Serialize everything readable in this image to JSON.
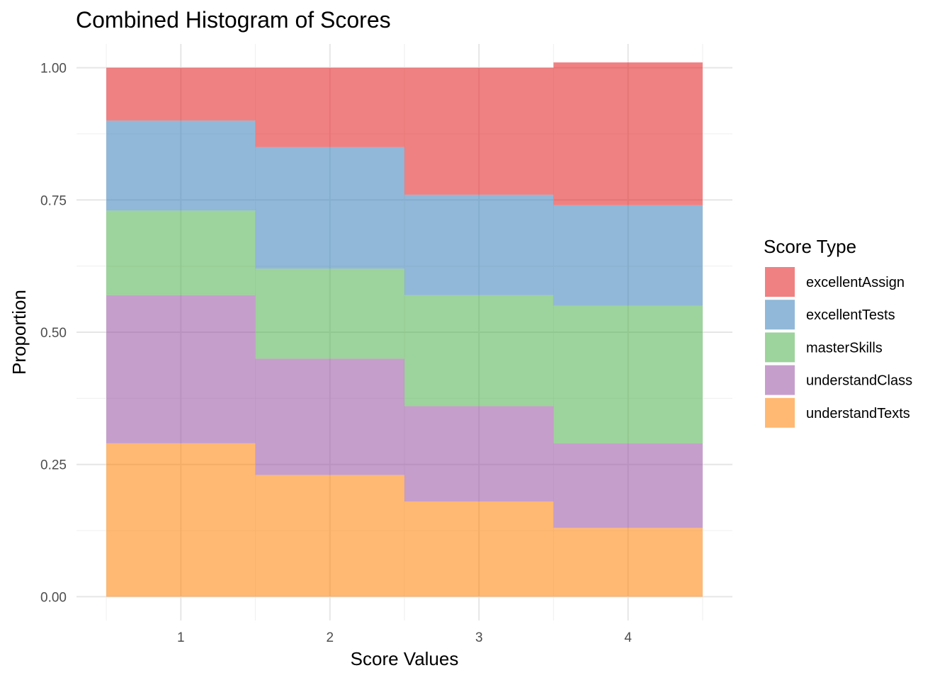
{
  "chart_data": {
    "type": "area",
    "subtype": "stacked step histogram (proportion)",
    "title": "Combined Histogram of Scores",
    "xlabel": "Score Values",
    "ylabel": "Proportion",
    "x": [
      1,
      2,
      3,
      4
    ],
    "x_tick_labels": [
      "1",
      "2",
      "3",
      "4"
    ],
    "y_ticks": [
      0.0,
      0.25,
      0.5,
      0.75,
      1.0
    ],
    "y_tick_labels": [
      "0.00",
      "0.25",
      "0.50",
      "0.75",
      "1.00"
    ],
    "xlim": [
      0.3,
      4.7
    ],
    "ylim": [
      -0.045,
      1.045
    ],
    "grid": true,
    "legend": {
      "title": "Score Type",
      "position": "right"
    },
    "stack_order_bottom_to_top": [
      "understandTexts",
      "understandClass",
      "masterSkills",
      "excellentTests",
      "excellentAssign"
    ],
    "series": [
      {
        "name": "excellentAssign",
        "color": "#E41A1C",
        "values": [
          0.1,
          0.15,
          0.24,
          0.27
        ]
      },
      {
        "name": "excellentTests",
        "color": "#377EB8",
        "values": [
          0.17,
          0.23,
          0.19,
          0.19
        ]
      },
      {
        "name": "masterSkills",
        "color": "#4DAF4A",
        "values": [
          0.16,
          0.17,
          0.21,
          0.26
        ]
      },
      {
        "name": "understandClass",
        "color": "#984EA3",
        "values": [
          0.28,
          0.22,
          0.18,
          0.16
        ]
      },
      {
        "name": "understandTexts",
        "color": "#FF7F00",
        "values": [
          0.29,
          0.23,
          0.18,
          0.13
        ]
      }
    ],
    "fill_opacity": 0.55
  }
}
